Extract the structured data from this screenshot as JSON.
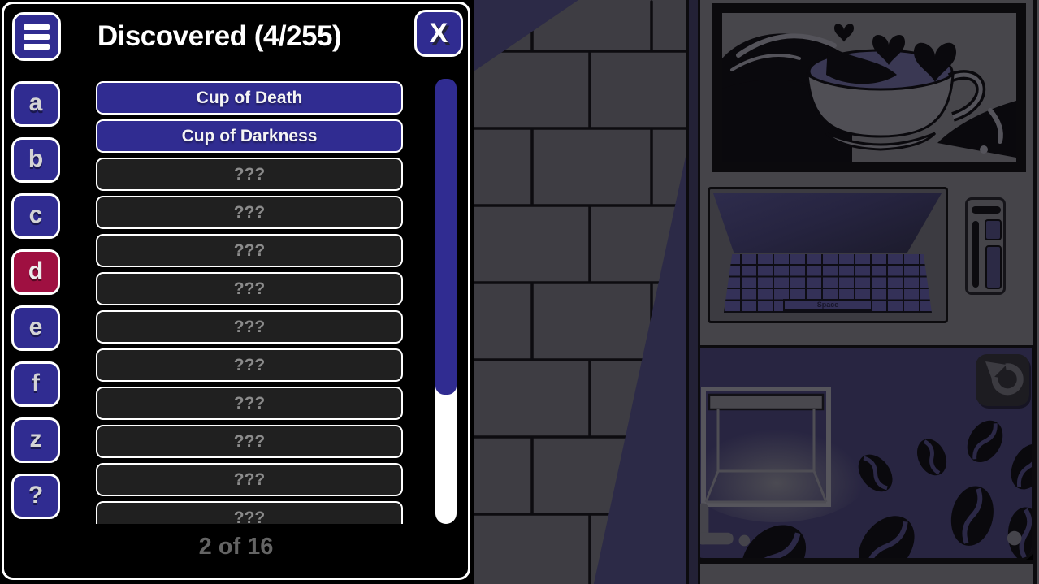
{
  "overlay": {
    "title": "Discovered (4/255)",
    "close_label": "X",
    "letters": [
      "a",
      "b",
      "c",
      "d",
      "e",
      "f",
      "z",
      "?"
    ],
    "selected_letter": "d",
    "entries": [
      {
        "label": "Cup of Death",
        "discovered": true
      },
      {
        "label": "Cup of Darkness",
        "discovered": true
      },
      {
        "label": "???",
        "discovered": false
      },
      {
        "label": "???",
        "discovered": false
      },
      {
        "label": "???",
        "discovered": false
      },
      {
        "label": "???",
        "discovered": false
      },
      {
        "label": "???",
        "discovered": false
      },
      {
        "label": "???",
        "discovered": false
      },
      {
        "label": "???",
        "discovered": false
      },
      {
        "label": "???",
        "discovered": false
      },
      {
        "label": "???",
        "discovered": false
      },
      {
        "label": "???",
        "discovered": false
      }
    ],
    "pagination": "2 of 16",
    "scrollbar_thumb_percent": 71
  },
  "scene": {
    "poster": "coffee-cup-with-hearts-poster",
    "laptop": {
      "space_key_label": "Space"
    },
    "refresh_icon": "circular-arrow",
    "decorations": [
      "brick-wall",
      "coffee-beans",
      "dispenser-cube"
    ]
  },
  "colors": {
    "accent_indigo": "#302c91",
    "accent_crimson": "#9f1041",
    "panel_bg": "#000000",
    "unknown_row_bg": "#202020",
    "wall_gray": "#3e3d43",
    "shadow_navy": "#2c2a47",
    "machine_gray": "#454449",
    "lower_panel_navy": "#282541"
  }
}
